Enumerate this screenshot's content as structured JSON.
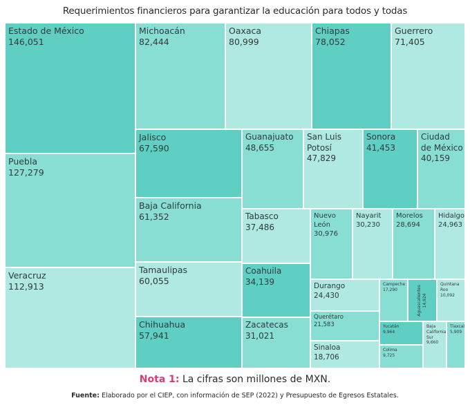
{
  "chart_data": {
    "type": "treemap",
    "title": "Requerimientos financieros para garantizar la educación para todos y todas",
    "colors": {
      "dark": "#5fcfc4",
      "medium": "#89ded4",
      "light": "#b0e8e2"
    },
    "items": [
      {
        "name": "Estado de México",
        "label": "146,051",
        "value": 146051,
        "shade": "dark"
      },
      {
        "name": "Puebla",
        "label": "127,279",
        "value": 127279,
        "shade": "medium"
      },
      {
        "name": "Veracruz",
        "label": "112,913",
        "value": 112913,
        "shade": "light"
      },
      {
        "name": "Michoacán",
        "label": "82,444",
        "value": 82444,
        "shade": "medium"
      },
      {
        "name": "Oaxaca",
        "label": "80,999",
        "value": 80999,
        "shade": "light"
      },
      {
        "name": "Chiapas",
        "label": "78,052",
        "value": 78052,
        "shade": "dark"
      },
      {
        "name": "Guerrero",
        "label": "71,405",
        "value": 71405,
        "shade": "light"
      },
      {
        "name": "Jalisco",
        "label": "67,590",
        "value": 67590,
        "shade": "dark"
      },
      {
        "name": "Baja California",
        "label": "61,352",
        "value": 61352,
        "shade": "medium"
      },
      {
        "name": "Tamaulipas",
        "label": "60,055",
        "value": 60055,
        "shade": "light"
      },
      {
        "name": "Chihuahua",
        "label": "57,941",
        "value": 57941,
        "shade": "dark"
      },
      {
        "name": "Guanajuato",
        "label": "48,655",
        "value": 48655,
        "shade": "medium"
      },
      {
        "name": "San Luis\nPotosí",
        "label": "47,829",
        "value": 47829,
        "shade": "light"
      },
      {
        "name": "Sonora",
        "label": "41,453",
        "value": 41453,
        "shade": "dark"
      },
      {
        "name": "Ciudad\nde México",
        "label": "40,159",
        "value": 40159,
        "shade": "medium"
      },
      {
        "name": "Tabasco",
        "label": "37,486",
        "value": 37486,
        "shade": "light"
      },
      {
        "name": "Coahuila",
        "label": "34,139",
        "value": 34139,
        "shade": "dark"
      },
      {
        "name": "Zacatecas",
        "label": "31,021",
        "value": 31021,
        "shade": "medium"
      },
      {
        "name": "Nuevo\nLeón",
        "label": "30,976",
        "value": 30976,
        "shade": "medium"
      },
      {
        "name": "Nayarit",
        "label": "30,230",
        "value": 30230,
        "shade": "light"
      },
      {
        "name": "Morelos",
        "label": "28,694",
        "value": 28694,
        "shade": "medium"
      },
      {
        "name": "Hidalgo",
        "label": "24,963",
        "value": 24963,
        "shade": "light"
      },
      {
        "name": "Durango",
        "label": "24,430",
        "value": 24430,
        "shade": "light"
      },
      {
        "name": "Querétaro",
        "label": "21,583",
        "value": 21583,
        "shade": "medium"
      },
      {
        "name": "Sinaloa",
        "label": "18,706",
        "value": 18706,
        "shade": "light"
      },
      {
        "name": "Campeche",
        "label": "17,290",
        "value": 17290,
        "shade": "medium"
      },
      {
        "name": "Aguascalientes",
        "label": "14,924",
        "value": 14924,
        "shade": "dark"
      },
      {
        "name": "Quintana\nRoo",
        "label": "10,092",
        "value": 10092,
        "shade": "light"
      },
      {
        "name": "Yucatán",
        "label": "9,964",
        "value": 9964,
        "shade": "dark"
      },
      {
        "name": "Colima",
        "label": "9,725",
        "value": 9725,
        "shade": "medium"
      },
      {
        "name": "Baja\nCalifornia\nSur",
        "label": "9,660",
        "value": 9660,
        "shade": "light"
      },
      {
        "name": "Tlaxcala",
        "label": "5,909",
        "value": 5909,
        "shade": "medium"
      }
    ]
  },
  "footer": {
    "nota_label": "Nota 1:",
    "nota_text": " La cifras son millones  de MXN.",
    "fuente_label": "Fuente:",
    "fuente_text": " Elaborado por el CIEP, con información de SEP (2022) y Presupuesto de Egresos Estatales."
  }
}
